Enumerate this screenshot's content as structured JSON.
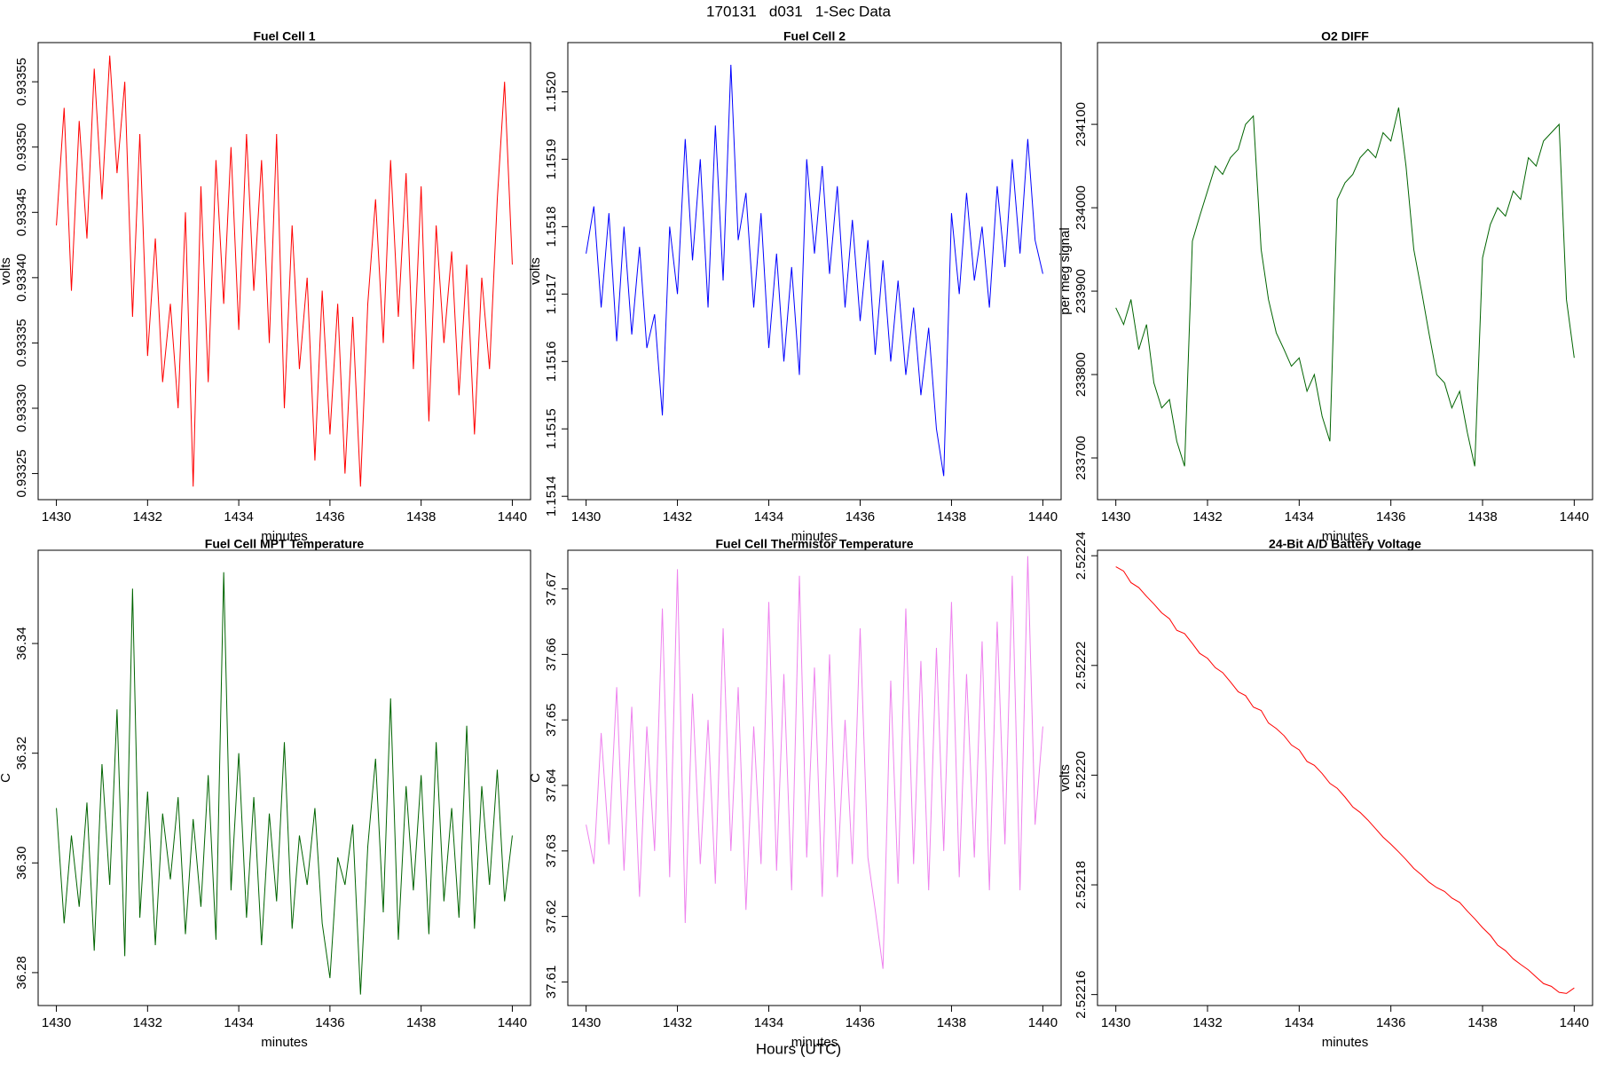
{
  "title": "170131   d031   1-Sec Data",
  "xlabel": "Hours (UTC)",
  "chart_data": [
    {
      "type": "line",
      "title": "Fuel Cell 1",
      "xlabel": "minutes",
      "ylabel": "volts",
      "color": "#ff0000",
      "xlim": [
        1429.6,
        1440.4
      ],
      "xticks": [
        1430,
        1432,
        1434,
        1436,
        1438,
        1440
      ],
      "ylim": [
        0.93323,
        0.93358
      ],
      "yticks": [
        0.93325,
        {
          "value": 0.9333,
          "label": "0.93330"
        },
        0.93335,
        {
          "value": 0.9334,
          "label": "0.93340"
        },
        0.93345,
        {
          "value": 0.9335,
          "label": "0.93350"
        },
        0.93355
      ],
      "x": [
        1430,
        1430.17,
        1430.33,
        1430.5,
        1430.67,
        1430.83,
        1431,
        1431.17,
        1431.33,
        1431.5,
        1431.67,
        1431.83,
        1432,
        1432.17,
        1432.33,
        1432.5,
        1432.67,
        1432.83,
        1433,
        1433.17,
        1433.33,
        1433.5,
        1433.67,
        1433.83,
        1434,
        1434.17,
        1434.33,
        1434.5,
        1434.67,
        1434.83,
        1435,
        1435.17,
        1435.33,
        1435.5,
        1435.67,
        1435.83,
        1436,
        1436.17,
        1436.33,
        1436.5,
        1436.67,
        1436.83,
        1437,
        1437.17,
        1437.33,
        1437.5,
        1437.67,
        1437.83,
        1438,
        1438.17,
        1438.33,
        1438.5,
        1438.67,
        1438.83,
        1439,
        1439.17,
        1439.33,
        1439.5,
        1439.67,
        1439.83,
        1440
      ],
      "values": [
        0.93344,
        0.93353,
        0.93339,
        0.93352,
        0.93343,
        0.93356,
        0.93346,
        0.93357,
        0.93348,
        0.93355,
        0.93337,
        0.93351,
        0.93334,
        0.93343,
        0.93332,
        0.93338,
        0.9333,
        0.93345,
        0.93324,
        0.93347,
        0.93332,
        0.93349,
        0.93338,
        0.9335,
        0.93336,
        0.93351,
        0.93339,
        0.93349,
        0.93335,
        0.93351,
        0.9333,
        0.93344,
        0.93333,
        0.9334,
        0.93326,
        0.93339,
        0.93328,
        0.93338,
        0.93325,
        0.93337,
        0.93324,
        0.93338,
        0.93346,
        0.93335,
        0.93349,
        0.93337,
        0.93348,
        0.93333,
        0.93347,
        0.93329,
        0.93344,
        0.93335,
        0.93342,
        0.93331,
        0.93341,
        0.93328,
        0.9334,
        0.93333,
        0.93346,
        0.93355,
        0.93341
      ]
    },
    {
      "type": "line",
      "title": "Fuel Cell 2",
      "xlabel": "minutes",
      "ylabel": "volts",
      "color": "#0000ff",
      "xlim": [
        1429.6,
        1440.4
      ],
      "xticks": [
        1430,
        1432,
        1434,
        1436,
        1438,
        1440
      ],
      "ylim": [
        1.151395,
        1.152073
      ],
      "yticks": [
        1.1514,
        1.1515,
        1.1516,
        1.1517,
        1.1518,
        1.1519,
        {
          "value": 1.152,
          "label": "1.1520"
        }
      ],
      "x": [
        1430,
        1430.17,
        1430.33,
        1430.5,
        1430.67,
        1430.83,
        1431,
        1431.17,
        1431.33,
        1431.5,
        1431.67,
        1431.83,
        1432,
        1432.17,
        1432.33,
        1432.5,
        1432.67,
        1432.83,
        1433,
        1433.17,
        1433.33,
        1433.5,
        1433.67,
        1433.83,
        1434,
        1434.17,
        1434.33,
        1434.5,
        1434.67,
        1434.83,
        1435,
        1435.17,
        1435.33,
        1435.5,
        1435.67,
        1435.83,
        1436,
        1436.17,
        1436.33,
        1436.5,
        1436.67,
        1436.83,
        1437,
        1437.17,
        1437.33,
        1437.5,
        1437.67,
        1437.83,
        1438,
        1438.17,
        1438.33,
        1438.5,
        1438.67,
        1438.83,
        1439,
        1439.17,
        1439.33,
        1439.5,
        1439.67,
        1439.83,
        1440
      ],
      "values": [
        1.15176,
        1.15183,
        1.15168,
        1.15182,
        1.15163,
        1.1518,
        1.15164,
        1.15177,
        1.15162,
        1.15167,
        1.15152,
        1.1518,
        1.1517,
        1.15193,
        1.15175,
        1.1519,
        1.15168,
        1.15195,
        1.15172,
        1.15204,
        1.15178,
        1.15185,
        1.15168,
        1.15182,
        1.15162,
        1.15176,
        1.1516,
        1.15174,
        1.15158,
        1.1519,
        1.15176,
        1.15189,
        1.15173,
        1.15186,
        1.15168,
        1.15181,
        1.15166,
        1.15178,
        1.15161,
        1.15175,
        1.1516,
        1.15172,
        1.15158,
        1.15168,
        1.15155,
        1.15165,
        1.1515,
        1.15143,
        1.15182,
        1.1517,
        1.15185,
        1.15172,
        1.1518,
        1.15168,
        1.15186,
        1.15174,
        1.1519,
        1.15176,
        1.15193,
        1.15178,
        1.15173
      ]
    },
    {
      "type": "line",
      "title": "O2 DIFF",
      "xlabel": "minutes",
      "ylabel": "per meg signal",
      "color": "#006400",
      "xlim": [
        1429.6,
        1440.4
      ],
      "xticks": [
        1430,
        1432,
        1434,
        1436,
        1438,
        1440
      ],
      "ylim": [
        233650,
        234198
      ],
      "yticks": [
        233700,
        233800,
        233900,
        234000,
        234100
      ],
      "x": [
        1430,
        1430.17,
        1430.33,
        1430.5,
        1430.67,
        1430.83,
        1431,
        1431.17,
        1431.33,
        1431.5,
        1431.67,
        1431.83,
        1432,
        1432.17,
        1432.33,
        1432.5,
        1432.67,
        1432.83,
        1433,
        1433.17,
        1433.33,
        1433.5,
        1433.67,
        1433.83,
        1434,
        1434.17,
        1434.33,
        1434.5,
        1434.67,
        1434.83,
        1435,
        1435.17,
        1435.33,
        1435.5,
        1435.67,
        1435.83,
        1436,
        1436.17,
        1436.33,
        1436.5,
        1436.67,
        1436.83,
        1437,
        1437.17,
        1437.33,
        1437.5,
        1437.67,
        1437.83,
        1438,
        1438.17,
        1438.33,
        1438.5,
        1438.67,
        1438.83,
        1439,
        1439.17,
        1439.33,
        1439.5,
        1439.67,
        1439.83,
        1440
      ],
      "values": [
        233880,
        233860,
        233890,
        233830,
        233860,
        233790,
        233760,
        233770,
        233720,
        233690,
        233960,
        233990,
        234020,
        234050,
        234040,
        234060,
        234070,
        234100,
        234110,
        233950,
        233890,
        233850,
        233830,
        233810,
        233820,
        233780,
        233800,
        233750,
        233720,
        234010,
        234030,
        234040,
        234060,
        234070,
        234060,
        234090,
        234080,
        234120,
        234050,
        233950,
        233900,
        233850,
        233800,
        233790,
        233760,
        233780,
        233730,
        233690,
        233940,
        233980,
        234000,
        233990,
        234020,
        234010,
        234060,
        234050,
        234080,
        234090,
        234100,
        233890,
        233820
      ]
    },
    {
      "type": "line",
      "title": "Fuel Cell MPT Temperature",
      "xlabel": "minutes",
      "ylabel": "C",
      "color": "#006400",
      "xlim": [
        1429.6,
        1440.4
      ],
      "xticks": [
        1430,
        1432,
        1434,
        1436,
        1438,
        1440
      ],
      "ylim": [
        36.274,
        36.357
      ],
      "yticks": [
        36.28,
        {
          "value": 36.3,
          "label": "36.30"
        },
        36.32,
        36.34
      ],
      "x": [
        1430,
        1430.17,
        1430.33,
        1430.5,
        1430.67,
        1430.83,
        1431,
        1431.17,
        1431.33,
        1431.5,
        1431.67,
        1431.83,
        1432,
        1432.17,
        1432.33,
        1432.5,
        1432.67,
        1432.83,
        1433,
        1433.17,
        1433.33,
        1433.5,
        1433.67,
        1433.83,
        1434,
        1434.17,
        1434.33,
        1434.5,
        1434.67,
        1434.83,
        1435,
        1435.17,
        1435.33,
        1435.5,
        1435.67,
        1435.83,
        1436,
        1436.17,
        1436.33,
        1436.5,
        1436.67,
        1436.83,
        1437,
        1437.17,
        1437.33,
        1437.5,
        1437.67,
        1437.83,
        1438,
        1438.17,
        1438.33,
        1438.5,
        1438.67,
        1438.83,
        1439,
        1439.17,
        1439.33,
        1439.5,
        1439.67,
        1439.83,
        1440
      ],
      "values": [
        36.31,
        36.289,
        36.305,
        36.292,
        36.311,
        36.284,
        36.318,
        36.296,
        36.328,
        36.283,
        36.35,
        36.29,
        36.313,
        36.285,
        36.309,
        36.297,
        36.312,
        36.287,
        36.308,
        36.292,
        36.316,
        36.286,
        36.353,
        36.295,
        36.32,
        36.29,
        36.312,
        36.285,
        36.309,
        36.293,
        36.322,
        36.288,
        36.305,
        36.296,
        36.31,
        36.289,
        36.279,
        36.301,
        36.296,
        36.307,
        36.276,
        36.303,
        36.319,
        36.291,
        36.33,
        36.286,
        36.314,
        36.295,
        36.316,
        36.287,
        36.322,
        36.293,
        36.31,
        36.29,
        36.325,
        36.288,
        36.314,
        36.296,
        36.317,
        36.293,
        36.305
      ]
    },
    {
      "type": "line",
      "title": "Fuel Cell Thermistor Temperature",
      "xlabel": "minutes",
      "ylabel": "C",
      "color": "#ee82ee",
      "xlim": [
        1429.6,
        1440.4
      ],
      "xticks": [
        1430,
        1432,
        1434,
        1436,
        1438,
        1440
      ],
      "ylim": [
        37.6064,
        37.6759
      ],
      "yticks": [
        37.61,
        37.62,
        37.63,
        37.64,
        37.65,
        37.66,
        37.67
      ],
      "x": [
        1430,
        1430.17,
        1430.33,
        1430.5,
        1430.67,
        1430.83,
        1431,
        1431.17,
        1431.33,
        1431.5,
        1431.67,
        1431.83,
        1432,
        1432.17,
        1432.33,
        1432.5,
        1432.67,
        1432.83,
        1433,
        1433.17,
        1433.33,
        1433.5,
        1433.67,
        1433.83,
        1434,
        1434.17,
        1434.33,
        1434.5,
        1434.67,
        1434.83,
        1435,
        1435.17,
        1435.33,
        1435.5,
        1435.67,
        1435.83,
        1436,
        1436.17,
        1436.33,
        1436.5,
        1436.67,
        1436.83,
        1437,
        1437.17,
        1437.33,
        1437.5,
        1437.67,
        1437.83,
        1438,
        1438.17,
        1438.33,
        1438.5,
        1438.67,
        1438.83,
        1439,
        1439.17,
        1439.33,
        1439.5,
        1439.67,
        1439.83,
        1440
      ],
      "values": [
        37.634,
        37.628,
        37.648,
        37.631,
        37.655,
        37.627,
        37.652,
        37.623,
        37.649,
        37.63,
        37.667,
        37.626,
        37.673,
        37.619,
        37.654,
        37.628,
        37.65,
        37.625,
        37.664,
        37.63,
        37.655,
        37.621,
        37.649,
        37.628,
        37.668,
        37.627,
        37.657,
        37.624,
        37.672,
        37.629,
        37.658,
        37.623,
        37.66,
        37.626,
        37.65,
        37.628,
        37.664,
        37.629,
        37.621,
        37.612,
        37.656,
        37.625,
        37.667,
        37.628,
        37.659,
        37.624,
        37.661,
        37.63,
        37.668,
        37.626,
        37.657,
        37.629,
        37.662,
        37.624,
        37.665,
        37.631,
        37.672,
        37.624,
        37.675,
        37.634,
        37.649
      ]
    },
    {
      "type": "line",
      "title": "24-Bit A/D Battery Voltage",
      "xlabel": "minutes",
      "ylabel": "volts",
      "color": "#ff0000",
      "xlim": [
        1429.6,
        1440.4
      ],
      "xticks": [
        1430,
        1432,
        1434,
        1436,
        1438,
        1440
      ],
      "ylim": [
        2.522158,
        2.522241
      ],
      "yticks": [
        2.52216,
        2.52218,
        {
          "value": 2.5222,
          "label": "2.52220"
        },
        2.52222,
        2.52224
      ],
      "x": [
        1430,
        1430.17,
        1430.33,
        1430.5,
        1430.67,
        1430.83,
        1431,
        1431.17,
        1431.33,
        1431.5,
        1431.67,
        1431.83,
        1432,
        1432.17,
        1432.33,
        1432.5,
        1432.67,
        1432.83,
        1433,
        1433.17,
        1433.33,
        1433.5,
        1433.67,
        1433.83,
        1434,
        1434.17,
        1434.33,
        1434.5,
        1434.67,
        1434.83,
        1435,
        1435.17,
        1435.33,
        1435.5,
        1435.67,
        1435.83,
        1436,
        1436.17,
        1436.33,
        1436.5,
        1436.67,
        1436.83,
        1437,
        1437.17,
        1437.33,
        1437.5,
        1437.67,
        1437.83,
        1438,
        1438.17,
        1438.33,
        1438.5,
        1438.67,
        1438.83,
        1439,
        1439.17,
        1439.33,
        1439.5,
        1439.67,
        1439.83,
        1440
      ],
      "values": [
        2.522238,
        2.5222372,
        2.5222351,
        2.5222342,
        2.5222326,
        2.5222312,
        2.5222296,
        2.5222285,
        2.5222264,
        2.5222258,
        2.522224,
        2.5222222,
        2.5222213,
        2.5222196,
        2.5222187,
        2.522217,
        2.5222152,
        2.5222145,
        2.5222124,
        2.5222118,
        2.5222095,
        2.5222085,
        2.5222072,
        2.5222055,
        2.5222046,
        2.5222025,
        2.5222018,
        2.5222003,
        2.5221985,
        2.5221976,
        2.522196,
        2.5221942,
        2.5221932,
        2.5221918,
        2.5221902,
        2.5221887,
        2.5221874,
        2.522186,
        2.5221846,
        2.522183,
        2.5221818,
        2.5221805,
        2.5221795,
        2.5221788,
        2.5221776,
        2.5221768,
        2.5221752,
        2.5221738,
        2.5221722,
        2.5221708,
        2.522169,
        2.522168,
        2.5221665,
        2.5221655,
        2.5221645,
        2.5221632,
        2.522162,
        2.5221615,
        2.5221604,
        2.5221602,
        2.5221612
      ]
    }
  ]
}
